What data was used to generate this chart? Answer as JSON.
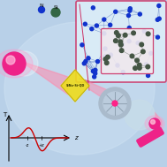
{
  "bg_color": "#b8d0e8",
  "sample_label": "SiNx-Si-QD",
  "N_atom_color": "#1133cc",
  "Si_atom_color": "#336644",
  "bond_color_N": "#3355bb",
  "bond_color_Si": "#445544",
  "inset_bg": "#eeeef8",
  "mol_box_bg": "#ddeef8",
  "mol_box_edge": "#cc3366",
  "inset_edge": "#cc3366",
  "zscan_color": "#cc0000",
  "beam_color": "#ff88aa",
  "sphere_color": "#ee2288",
  "sphere_glow": "#ff99cc",
  "sample_color": "#eedc20",
  "disk_color": "#aabbcc",
  "lens_color": "#bbccdd",
  "rod_color": "#ee2288",
  "N_label": "N",
  "Si_label": "Si"
}
